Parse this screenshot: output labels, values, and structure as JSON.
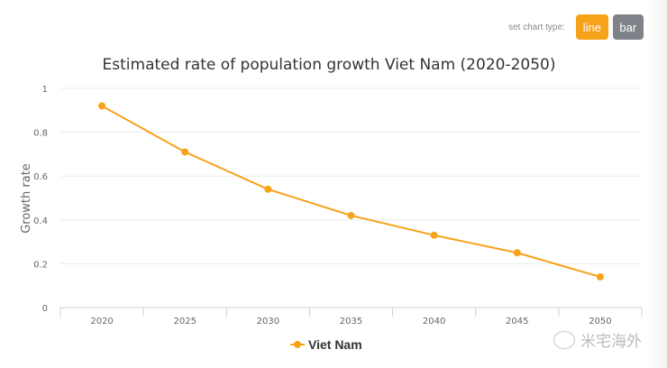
{
  "controls": {
    "chart_type_label": "set chart type:",
    "line_label": "line",
    "bar_label": "bar",
    "active": "line",
    "active_color": "#f7a21b",
    "inactive_color": "#7f8389"
  },
  "watermark": {
    "text": "米宅海外"
  },
  "chart_data": {
    "type": "line",
    "title": "Estimated rate of population growth Viet Nam (2020-2050)",
    "xlabel": "",
    "ylabel": "Growth rate",
    "categories": [
      "2020",
      "2025",
      "2030",
      "2035",
      "2040",
      "2045",
      "2050"
    ],
    "series": [
      {
        "name": "Viet Nam",
        "color": "#f7a21b",
        "values": [
          0.92,
          0.71,
          0.54,
          0.42,
          0.33,
          0.25,
          0.14
        ]
      }
    ],
    "ylim": [
      0,
      1
    ],
    "yticks": [
      "0",
      "0.2",
      "0.4",
      "0.6",
      "0.8",
      "1"
    ],
    "grid": true,
    "legend": "bottom-center"
  }
}
